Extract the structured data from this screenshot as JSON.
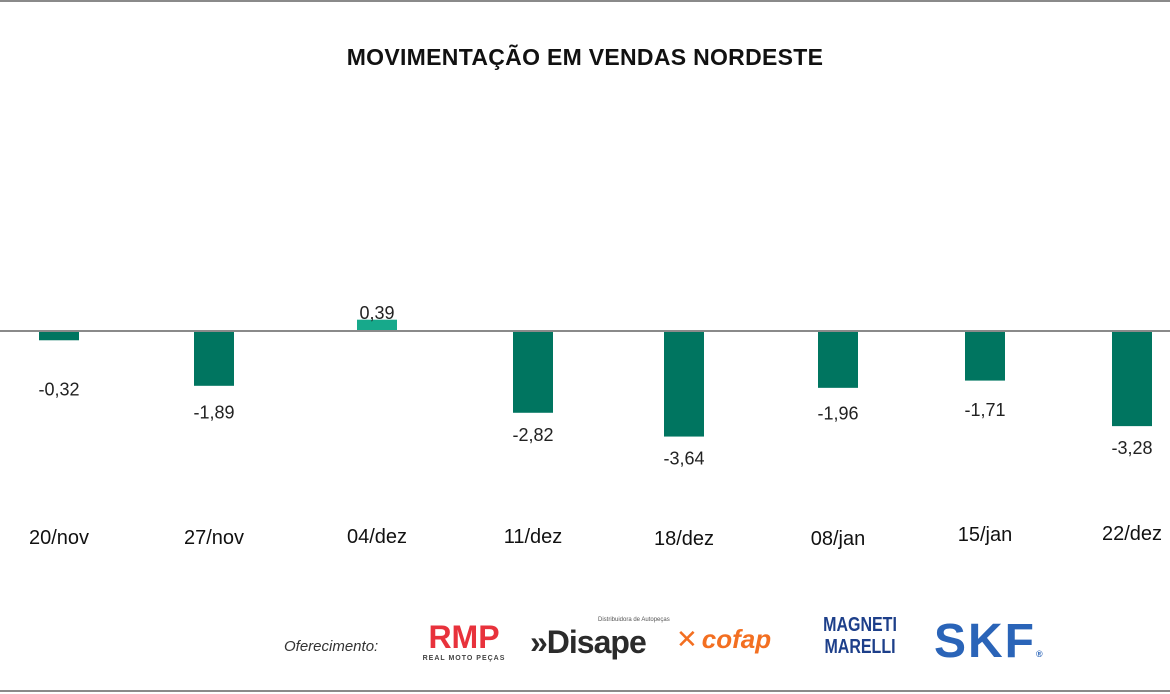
{
  "chart_data": {
    "type": "bar",
    "title": "MOVIMENTAÇÃO EM VENDAS NORDESTE",
    "categories": [
      "20/nov",
      "27/nov",
      "04/dez",
      "11/dez",
      "18/dez",
      "08/jan",
      "15/jan",
      "22/dez"
    ],
    "values": [
      -0.32,
      -1.89,
      0.39,
      -2.82,
      -3.64,
      -1.96,
      -1.71,
      -3.28
    ],
    "data_labels": [
      "-0,32",
      "-1,89",
      "0,39",
      "-2,82",
      "-3,64",
      "-1,96",
      "-1,71",
      "-3,28"
    ],
    "xlabel": "",
    "ylabel": "",
    "grid": false,
    "colors": {
      "negative": "#007560",
      "positive": "#17a98b",
      "baseline": "#8a8a8a"
    }
  },
  "sponsor": {
    "label": "Oferecimento:",
    "logos": [
      {
        "name": "RMP",
        "subtitle": "REAL MOTO PEÇAS",
        "color": "#e8323c"
      },
      {
        "name": "»Disape",
        "subtitle": "Distribuidora de Autopeças",
        "color": "#2b2b2b"
      },
      {
        "name": "cofap",
        "color": "#f36f21"
      },
      {
        "name": "MAGNETI MARELLI",
        "color": "#1d3f8a"
      },
      {
        "name": "SKF",
        "color": "#2a64b8"
      }
    ]
  }
}
